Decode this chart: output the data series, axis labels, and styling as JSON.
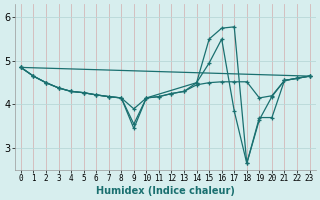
{
  "xlabel": "Humidex (Indice chaleur)",
  "background_color": "#d7eeee",
  "grid_color": "#b8d8d8",
  "line_color": "#1a7070",
  "xlim": [
    -0.5,
    23.5
  ],
  "ylim": [
    2.5,
    6.3
  ],
  "yticks": [
    3,
    4,
    5,
    6
  ],
  "xticks": [
    0,
    1,
    2,
    3,
    4,
    5,
    6,
    7,
    8,
    9,
    10,
    11,
    12,
    13,
    14,
    15,
    16,
    17,
    18,
    19,
    20,
    21,
    22,
    23
  ],
  "lines": [
    {
      "x": [
        0,
        1,
        2,
        3,
        4,
        5,
        6,
        7,
        8,
        9,
        10,
        14,
        15,
        16,
        17,
        18,
        19,
        20,
        21,
        22,
        23
      ],
      "y": [
        4.85,
        4.65,
        4.5,
        4.38,
        4.3,
        4.27,
        4.22,
        4.18,
        4.15,
        3.9,
        4.15,
        4.5,
        5.5,
        5.75,
        5.78,
        2.65,
        3.7,
        3.7,
        4.55,
        4.6,
        4.65
      ]
    },
    {
      "x": [
        0,
        1,
        2,
        3,
        4,
        5,
        6,
        7,
        8,
        9,
        10,
        11,
        12,
        13,
        14,
        15,
        16,
        17,
        18,
        19,
        20,
        21,
        22,
        23
      ],
      "y": [
        4.85,
        4.65,
        4.5,
        4.38,
        4.3,
        4.27,
        4.22,
        4.18,
        4.15,
        3.55,
        4.15,
        4.18,
        4.25,
        4.3,
        4.45,
        4.5,
        4.52,
        4.52,
        4.52,
        4.15,
        4.2,
        4.55,
        4.6,
        4.65
      ]
    },
    {
      "x": [
        0,
        1,
        2,
        3,
        4,
        5,
        6,
        7,
        8,
        9,
        10,
        11,
        12,
        13,
        14,
        15,
        16,
        17,
        18,
        19,
        20,
        21,
        22,
        23
      ],
      "y": [
        4.85,
        4.65,
        4.5,
        4.38,
        4.3,
        4.27,
        4.22,
        4.18,
        4.15,
        3.45,
        4.15,
        4.18,
        4.25,
        4.3,
        4.5,
        4.95,
        5.5,
        3.85,
        2.65,
        3.65,
        4.18,
        4.55,
        4.6,
        4.65
      ]
    },
    {
      "x": [
        0,
        23
      ],
      "y": [
        4.85,
        4.65
      ]
    }
  ]
}
